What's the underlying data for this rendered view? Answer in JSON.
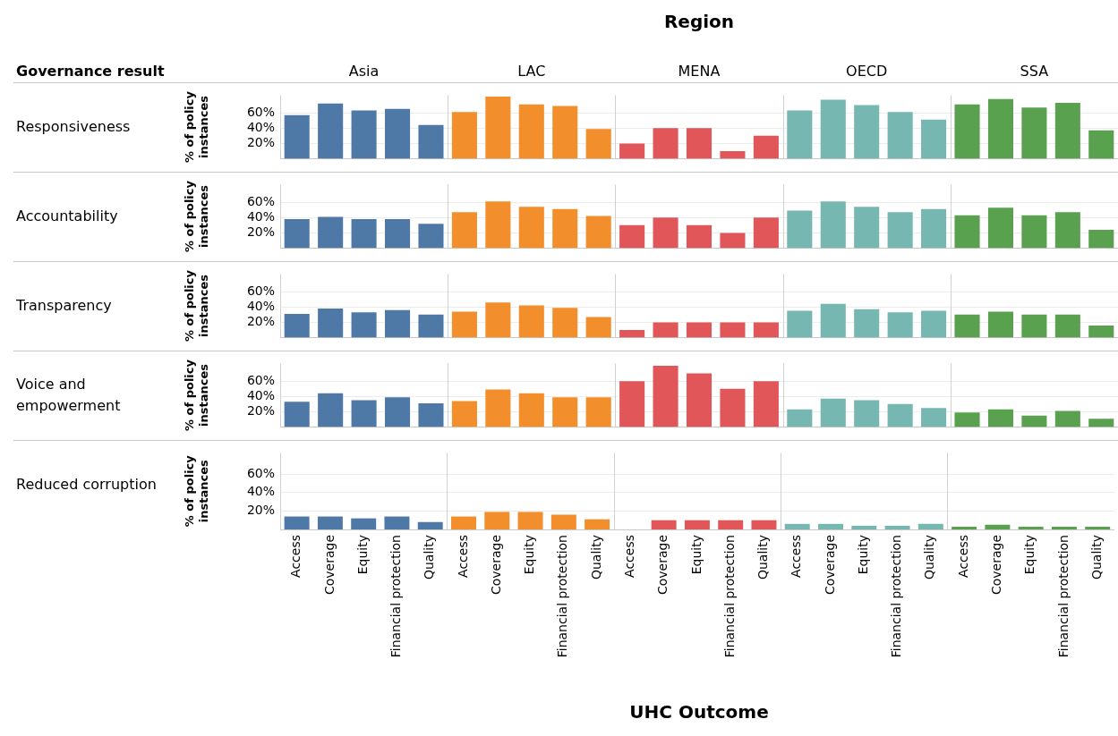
{
  "chart_data": [
    {
      "type": "bar",
      "ylabel": "% of policy instances",
      "annotations": [
        "Responsiveness",
        "Region",
        "Governance result",
        "Asia",
        "LAC",
        "MENA",
        "OECD",
        "SSA"
      ],
      "categories": [
        null,
        null,
        null,
        null,
        null,
        null,
        null,
        null,
        null,
        null,
        null,
        null,
        null,
        null,
        null,
        null,
        null,
        null,
        null,
        null,
        null,
        null,
        null,
        null,
        null
      ],
      "colors": [
        "#4e79a7",
        "#4e79a7",
        "#4e79a7",
        "#4e79a7",
        "#4e79a7",
        "#f28e2b",
        "#f28e2b",
        "#f28e2b",
        "#f28e2b",
        "#f28e2b",
        "#e15759",
        "#e15759",
        "#e15759",
        "#e15759",
        "#e15759",
        "#76b7b2",
        "#76b7b2",
        "#76b7b2",
        "#76b7b2",
        "#76b7b2",
        "#59a14f",
        "#59a14f",
        "#59a14f",
        "#59a14f",
        "#59a14f"
      ],
      "values": [
        57,
        72,
        63,
        65,
        44,
        61,
        81,
        71,
        69,
        39,
        20,
        40,
        40,
        10,
        30,
        63,
        77,
        70,
        61,
        51,
        71,
        78,
        67,
        73,
        37
      ],
      "ylim": [
        0,
        83
      ],
      "yticks": [
        {
          "value": 20,
          "label": "20%"
        },
        {
          "value": 40,
          "label": "40%"
        },
        {
          "value": 60,
          "label": "60%"
        }
      ],
      "grid": "y",
      "tick_labels": "y",
      "legend": false
    },
    {
      "type": "bar",
      "ylabel": "% of policy instances",
      "annotations": [
        "Accountability"
      ],
      "categories": [
        null,
        null,
        null,
        null,
        null,
        null,
        null,
        null,
        null,
        null,
        null,
        null,
        null,
        null,
        null,
        null,
        null,
        null,
        null,
        null,
        null,
        null,
        null,
        null,
        null
      ],
      "colors": [
        "#4e79a7",
        "#4e79a7",
        "#4e79a7",
        "#4e79a7",
        "#4e79a7",
        "#f28e2b",
        "#f28e2b",
        "#f28e2b",
        "#f28e2b",
        "#f28e2b",
        "#e15759",
        "#e15759",
        "#e15759",
        "#e15759",
        "#e15759",
        "#76b7b2",
        "#76b7b2",
        "#76b7b2",
        "#76b7b2",
        "#76b7b2",
        "#59a14f",
        "#59a14f",
        "#59a14f",
        "#59a14f",
        "#59a14f"
      ],
      "values": [
        38,
        41,
        38,
        38,
        32,
        47,
        61,
        54,
        51,
        42,
        30,
        40,
        30,
        20,
        40,
        49,
        61,
        54,
        47,
        51,
        43,
        53,
        43,
        47,
        24
      ],
      "ylim": [
        0,
        83
      ],
      "yticks": [
        {
          "value": 20,
          "label": "20%"
        },
        {
          "value": 40,
          "label": "40%"
        },
        {
          "value": 60,
          "label": "60%"
        }
      ],
      "grid": "y",
      "tick_labels": "y",
      "legend": false
    },
    {
      "type": "bar",
      "ylabel": "% of policy instances",
      "annotations": [
        "Transparency"
      ],
      "categories": [
        null,
        null,
        null,
        null,
        null,
        null,
        null,
        null,
        null,
        null,
        null,
        null,
        null,
        null,
        null,
        null,
        null,
        null,
        null,
        null,
        null,
        null,
        null,
        null,
        null
      ],
      "colors": [
        "#4e79a7",
        "#4e79a7",
        "#4e79a7",
        "#4e79a7",
        "#4e79a7",
        "#f28e2b",
        "#f28e2b",
        "#f28e2b",
        "#f28e2b",
        "#f28e2b",
        "#e15759",
        "#e15759",
        "#e15759",
        "#e15759",
        "#e15759",
        "#76b7b2",
        "#76b7b2",
        "#76b7b2",
        "#76b7b2",
        "#76b7b2",
        "#59a14f",
        "#59a14f",
        "#59a14f",
        "#59a14f",
        "#59a14f"
      ],
      "values": [
        31,
        38,
        33,
        36,
        30,
        34,
        46,
        42,
        39,
        27,
        10,
        20,
        20,
        20,
        20,
        35,
        44,
        37,
        33,
        35,
        30,
        34,
        30,
        30,
        16
      ],
      "ylim": [
        0,
        83
      ],
      "yticks": [
        {
          "value": 20,
          "label": "20%"
        },
        {
          "value": 40,
          "label": "40%"
        },
        {
          "value": 60,
          "label": "60%"
        }
      ],
      "grid": "y",
      "tick_labels": "y",
      "legend": false
    },
    {
      "type": "bar",
      "ylabel": "% of policy instances",
      "annotations": [
        "Voice and empowerment"
      ],
      "categories": [
        null,
        null,
        null,
        null,
        null,
        null,
        null,
        null,
        null,
        null,
        null,
        null,
        null,
        null,
        null,
        null,
        null,
        null,
        null,
        null,
        null,
        null,
        null,
        null,
        null
      ],
      "colors": [
        "#4e79a7",
        "#4e79a7",
        "#4e79a7",
        "#4e79a7",
        "#4e79a7",
        "#f28e2b",
        "#f28e2b",
        "#f28e2b",
        "#f28e2b",
        "#f28e2b",
        "#e15759",
        "#e15759",
        "#e15759",
        "#e15759",
        "#e15759",
        "#76b7b2",
        "#76b7b2",
        "#76b7b2",
        "#76b7b2",
        "#76b7b2",
        "#59a14f",
        "#59a14f",
        "#59a14f",
        "#59a14f",
        "#59a14f"
      ],
      "values": [
        33,
        44,
        35,
        39,
        31,
        34,
        49,
        44,
        39,
        39,
        60,
        80,
        70,
        50,
        60,
        23,
        37,
        35,
        30,
        25,
        19,
        23,
        15,
        21,
        11
      ],
      "ylim": [
        0,
        83
      ],
      "yticks": [
        {
          "value": 20,
          "label": "20%"
        },
        {
          "value": 40,
          "label": "40%"
        },
        {
          "value": 60,
          "label": "60%"
        }
      ],
      "grid": "y",
      "tick_labels": "y",
      "legend": false
    },
    {
      "type": "bar",
      "ylabel": "% of policy instances",
      "annotations": [
        "Reduced corruption"
      ],
      "xlabel": "UHC Outcome",
      "categories": [
        "Access",
        "Coverage",
        "Equity",
        "Financial protection",
        "Quality",
        "Access",
        "Coverage",
        "Equity",
        "Financial protection",
        "Quality",
        "Access",
        "Coverage",
        "Equity",
        "Financial protection",
        "Quality",
        "Access",
        "Coverage",
        "Equity",
        "Financial protection",
        "Quality",
        "Access",
        "Coverage",
        "Equity",
        "Financial protection",
        "Quality"
      ],
      "colors": [
        "#4e79a7",
        "#4e79a7",
        "#4e79a7",
        "#4e79a7",
        "#4e79a7",
        "#f28e2b",
        "#f28e2b",
        "#f28e2b",
        "#f28e2b",
        "#f28e2b",
        "#e15759",
        "#e15759",
        "#e15759",
        "#e15759",
        "#e15759",
        "#76b7b2",
        "#76b7b2",
        "#76b7b2",
        "#76b7b2",
        "#76b7b2",
        "#59a14f",
        "#59a14f",
        "#59a14f",
        "#59a14f",
        "#59a14f"
      ],
      "values": [
        14,
        14,
        12,
        14,
        8,
        14,
        19,
        19,
        16,
        11,
        0,
        10,
        10,
        10,
        10,
        6,
        6,
        4,
        4,
        6,
        3,
        5,
        3,
        3,
        3
      ],
      "ylim": [
        0,
        83
      ],
      "yticks": [
        {
          "value": 20,
          "label": "20%"
        },
        {
          "value": 40,
          "label": "40%"
        },
        {
          "value": 60,
          "label": "60%"
        }
      ],
      "grid": "y",
      "legend": false
    }
  ]
}
